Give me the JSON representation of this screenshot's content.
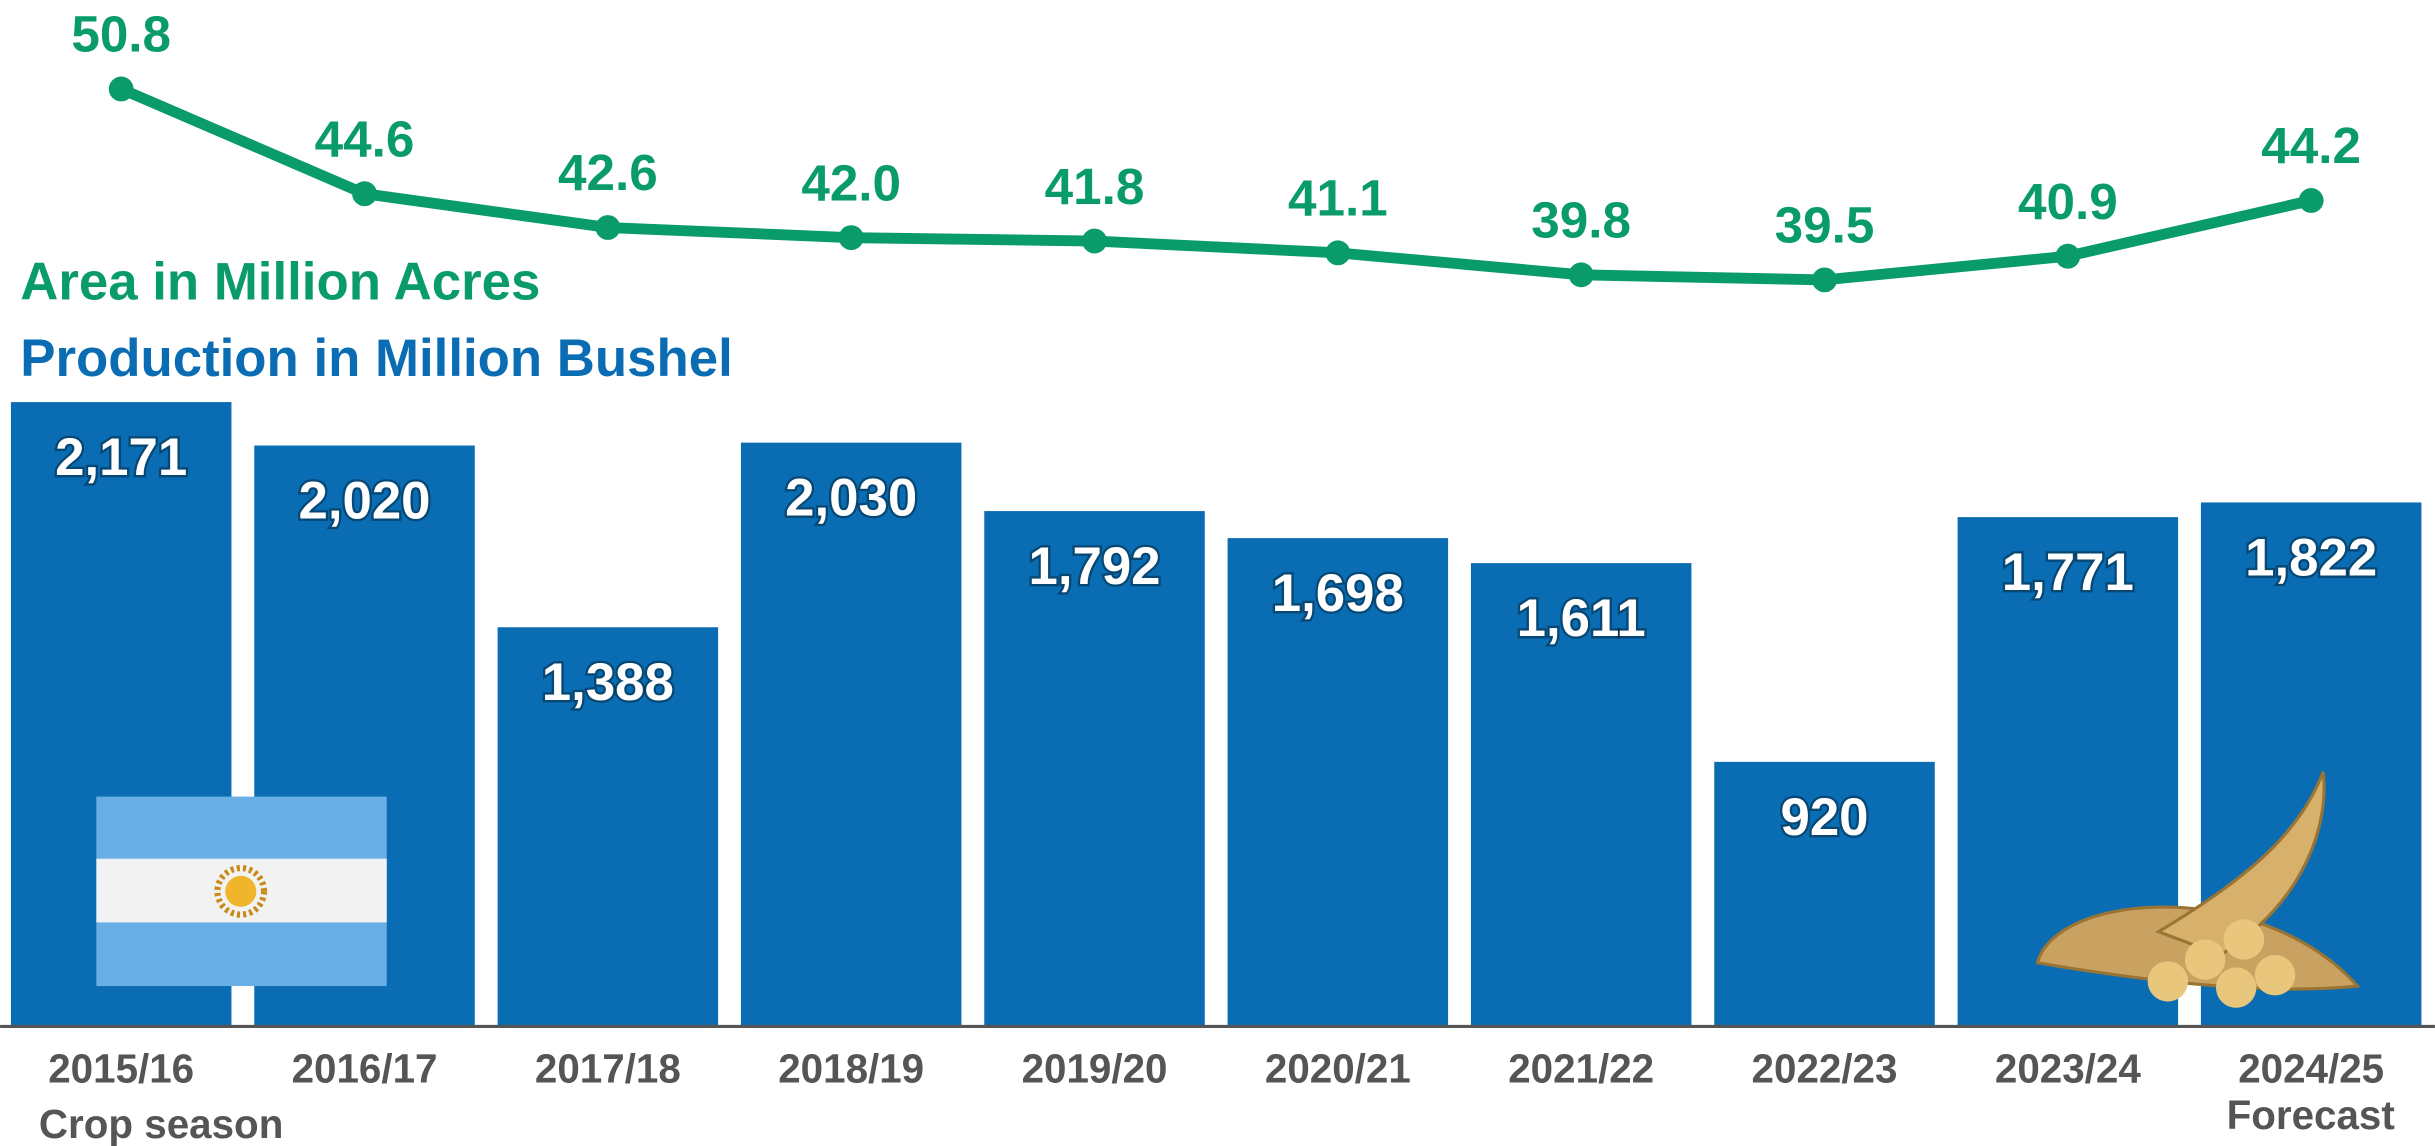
{
  "chart_data": {
    "type": "combo",
    "categories": [
      "2015/16",
      "2016/17",
      "2017/18",
      "2018/19",
      "2019/20",
      "2020/21",
      "2021/22",
      "2022/23",
      "2023/24",
      "2024/25"
    ],
    "x_label": "Crop season",
    "annotation": "Forecast",
    "series": [
      {
        "name": "Area in Million Acres",
        "type": "line",
        "axis": "y2",
        "color": "#0a9b6a",
        "values": [
          50.8,
          44.6,
          42.6,
          42.0,
          41.8,
          41.1,
          39.8,
          39.5,
          40.9,
          44.2
        ],
        "value_labels": [
          "50.8",
          "44.6",
          "42.6",
          "42.0",
          "41.8",
          "41.1",
          "39.8",
          "39.5",
          "40.9",
          "44.2"
        ]
      },
      {
        "name": "Production in Million Bushel",
        "type": "bar",
        "color": "#0a6db3",
        "values": [
          2171,
          2020,
          1388,
          2030,
          1792,
          1698,
          1611,
          920,
          1771,
          1822
        ],
        "value_labels": [
          "2,171",
          "2,020",
          "1,388",
          "2,030",
          "1,792",
          "1,698",
          "1,611",
          "920",
          "1,771",
          "1,822"
        ]
      }
    ]
  }
}
